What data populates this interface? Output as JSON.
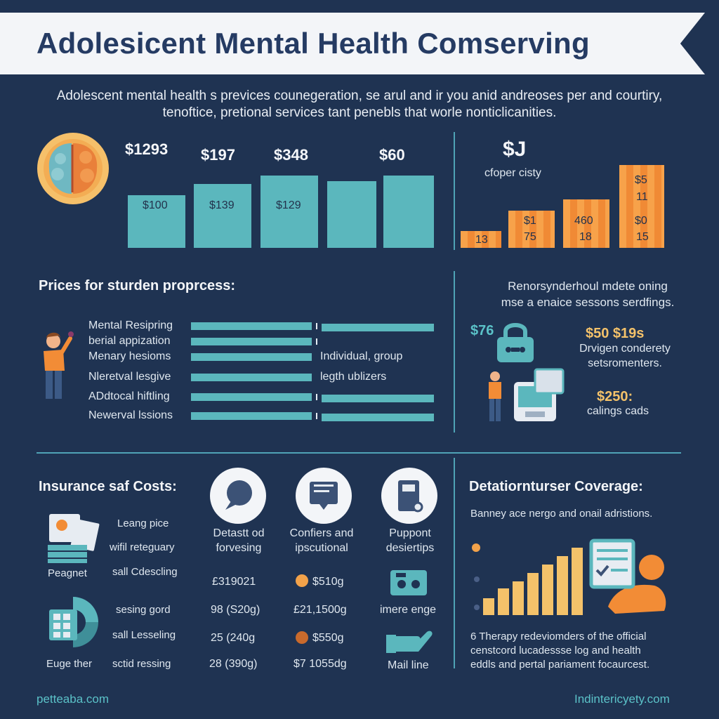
{
  "title": "Adolesicent Mental Health Comserving",
  "intro": {
    "line1": "Adolescent mental health s previces counegeration, se arul and ir you anid andreoses per and courtiry,",
    "line2": "tenoftice, pretional services tant penebls that worle nonticlicanities."
  },
  "top_chart": {
    "price_labels": [
      "$1293",
      "$197",
      "$348",
      "$60"
    ],
    "bar_labels": [
      "$100",
      "$139",
      "$129"
    ],
    "bar_fill_color": "#5bb7bd"
  },
  "right_chart": {
    "big_label": "$J",
    "caption": "cfoper cisty",
    "bars": [
      {
        "top": "",
        "bottom": "13"
      },
      {
        "top": "$1",
        "bottom": "75"
      },
      {
        "top": "460",
        "bottom": "18"
      },
      {
        "top": "$5",
        "mid": "11",
        "top2": "$0",
        "bottom": "15"
      }
    ]
  },
  "prices_section": {
    "heading": "Prices for sturden proprcess:",
    "rows": [
      {
        "label": "Mental Resipring"
      },
      {
        "label": "berial appization"
      },
      {
        "label": "Menary hesioms",
        "note": "Individual, group"
      },
      {
        "label": "Nleretval lesgive",
        "note": "legth ublizers"
      },
      {
        "label": "ADdtocal hiftling"
      },
      {
        "label": "Newerval lssions"
      }
    ]
  },
  "right_services": {
    "line1": "Renorsynderhoul mdete oning",
    "line2": "mse a enaice sessons serdfings.",
    "price1": "$76",
    "price2": "$50 $19s",
    "desc1_line1": "Drvigen conderety",
    "desc1_line2": "setsromenters.",
    "price3": "$250:",
    "desc2": "calings cads"
  },
  "insurance": {
    "heading": "Insurance saf Costs:",
    "left_labels": [
      "Peagnet",
      "Euge ther"
    ],
    "mid_labels": [
      "Leang pice",
      "wifil reteguary",
      "sall Cdescling",
      "sesing gord",
      "sall Lesseling",
      "sctid ressing"
    ],
    "col_titles": [
      {
        "l1": "Detastt od",
        "l2": "forvesing"
      },
      {
        "l1": "Confiers and",
        "l2": "ipscutional"
      },
      {
        "l1": "Puppont",
        "l2": "desiertips"
      }
    ],
    "col1_values": [
      "£319021",
      "98 (S20g)",
      "25 (240g",
      "28 (390g)"
    ],
    "col2_values": [
      "$510g",
      "£21,1500g",
      "$550g",
      "$7 1055dg"
    ],
    "col3_labels": [
      "imere enge",
      "Mail line"
    ]
  },
  "coverage": {
    "heading": "Detatiornturser Coverage:",
    "subtitle": "Banney ace nergo and onail adristions.",
    "bar_levels": [
      0.25,
      0.4,
      0.5,
      0.62,
      0.75,
      0.88,
      1.0
    ],
    "note_line1": "6  Therapy redeviomders of the official",
    "note_line2": "censtcord lucadessse log and health",
    "note_line3": "eddls and pertal pariament focaurcest."
  },
  "footer": {
    "left": "petteaba.com",
    "right": "Indintericyety.com"
  },
  "colors": {
    "background": "#1f3352",
    "teal": "#5bb7bd",
    "orange": "#f28c36",
    "gold": "#f4c26a"
  }
}
